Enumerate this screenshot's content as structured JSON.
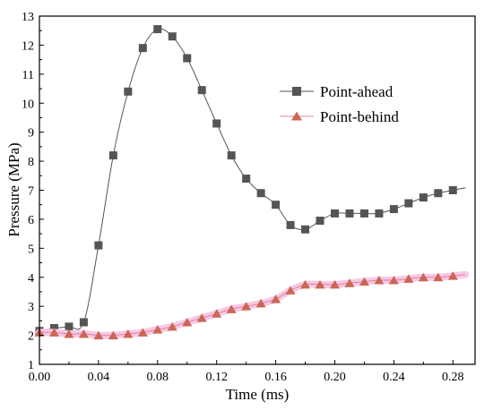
{
  "chart_data": {
    "type": "line",
    "title": "",
    "xlabel": "Time (ms)",
    "ylabel": "Pressure (MPa)",
    "xlim": [
      0,
      0.295
    ],
    "ylim": [
      1,
      13
    ],
    "x_ticks": [
      "0.00",
      "0.04",
      "0.08",
      "0.12",
      "0.16",
      "0.20",
      "0.24",
      "0.28"
    ],
    "y_ticks": [
      "1",
      "2",
      "3",
      "4",
      "5",
      "6",
      "7",
      "8",
      "9",
      "10",
      "11",
      "12",
      "13"
    ],
    "legend_position": "upper-right",
    "grid": false,
    "series": [
      {
        "name": "Point-ahead",
        "marker": "square",
        "color": "#555555",
        "line_color": "#555555",
        "x": [
          0.0,
          0.01,
          0.02,
          0.03,
          0.04,
          0.05,
          0.06,
          0.07,
          0.08,
          0.09,
          0.1,
          0.11,
          0.12,
          0.13,
          0.14,
          0.15,
          0.16,
          0.17,
          0.18,
          0.19,
          0.2,
          0.21,
          0.22,
          0.23,
          0.24,
          0.25,
          0.26,
          0.27,
          0.28
        ],
        "y": [
          2.15,
          2.25,
          2.3,
          2.45,
          5.1,
          8.2,
          10.4,
          11.9,
          12.55,
          12.3,
          11.55,
          10.45,
          9.3,
          8.2,
          7.4,
          6.9,
          6.5,
          5.8,
          5.65,
          5.95,
          6.2,
          6.2,
          6.2,
          6.2,
          6.35,
          6.55,
          6.75,
          6.9,
          7.0
        ]
      },
      {
        "name": "Point-behind",
        "marker": "triangle",
        "color": "#cc6655",
        "line_color": "#e080a0",
        "x": [
          0.0,
          0.01,
          0.02,
          0.03,
          0.04,
          0.05,
          0.06,
          0.07,
          0.08,
          0.09,
          0.1,
          0.11,
          0.12,
          0.13,
          0.14,
          0.15,
          0.16,
          0.17,
          0.18,
          0.19,
          0.2,
          0.21,
          0.22,
          0.23,
          0.24,
          0.25,
          0.26,
          0.27,
          0.28
        ],
        "y": [
          2.1,
          2.1,
          2.05,
          2.05,
          2.0,
          2.0,
          2.05,
          2.1,
          2.2,
          2.3,
          2.45,
          2.6,
          2.75,
          2.9,
          3.0,
          3.1,
          3.25,
          3.55,
          3.75,
          3.75,
          3.75,
          3.8,
          3.85,
          3.9,
          3.9,
          3.95,
          4.0,
          4.0,
          4.05
        ]
      }
    ]
  }
}
